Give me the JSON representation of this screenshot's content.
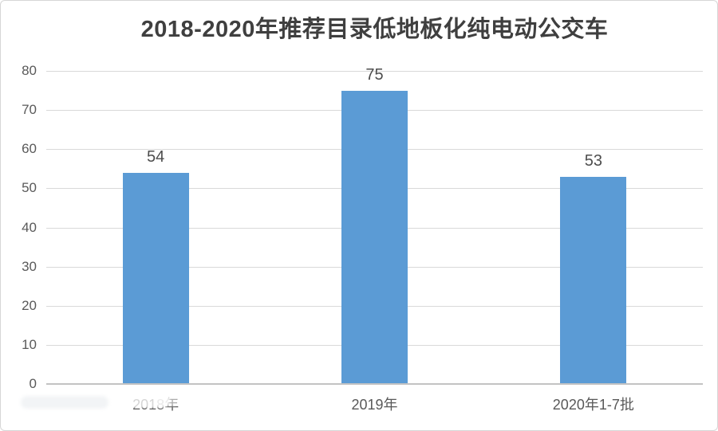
{
  "page": {
    "background_color": "#ffffff",
    "border_color": "#d6d6d6"
  },
  "chart_data": {
    "type": "bar",
    "title": "2018-2020年推荐目录低地板化纯电动公交车",
    "categories": [
      "2018年",
      "2019年",
      "2020年1-7批"
    ],
    "values": [
      54,
      75,
      53
    ],
    "data_labels": [
      "54",
      "75",
      "53"
    ],
    "xlabel": "",
    "ylabel": "",
    "ylim": [
      0,
      80
    ],
    "ytick_step": 10,
    "ytick_labels": [
      "0",
      "10",
      "20",
      "30",
      "40",
      "50",
      "60",
      "70",
      "80"
    ],
    "grid": true,
    "legend": "none",
    "bar_color": "#5b9bd5",
    "gridline_color": "#d9d9d9",
    "axis_line_color": "#c3c3c3",
    "title_color": "#3f3f3f",
    "tick_label_color": "#595959",
    "value_label_color": "#4d4d4d"
  }
}
